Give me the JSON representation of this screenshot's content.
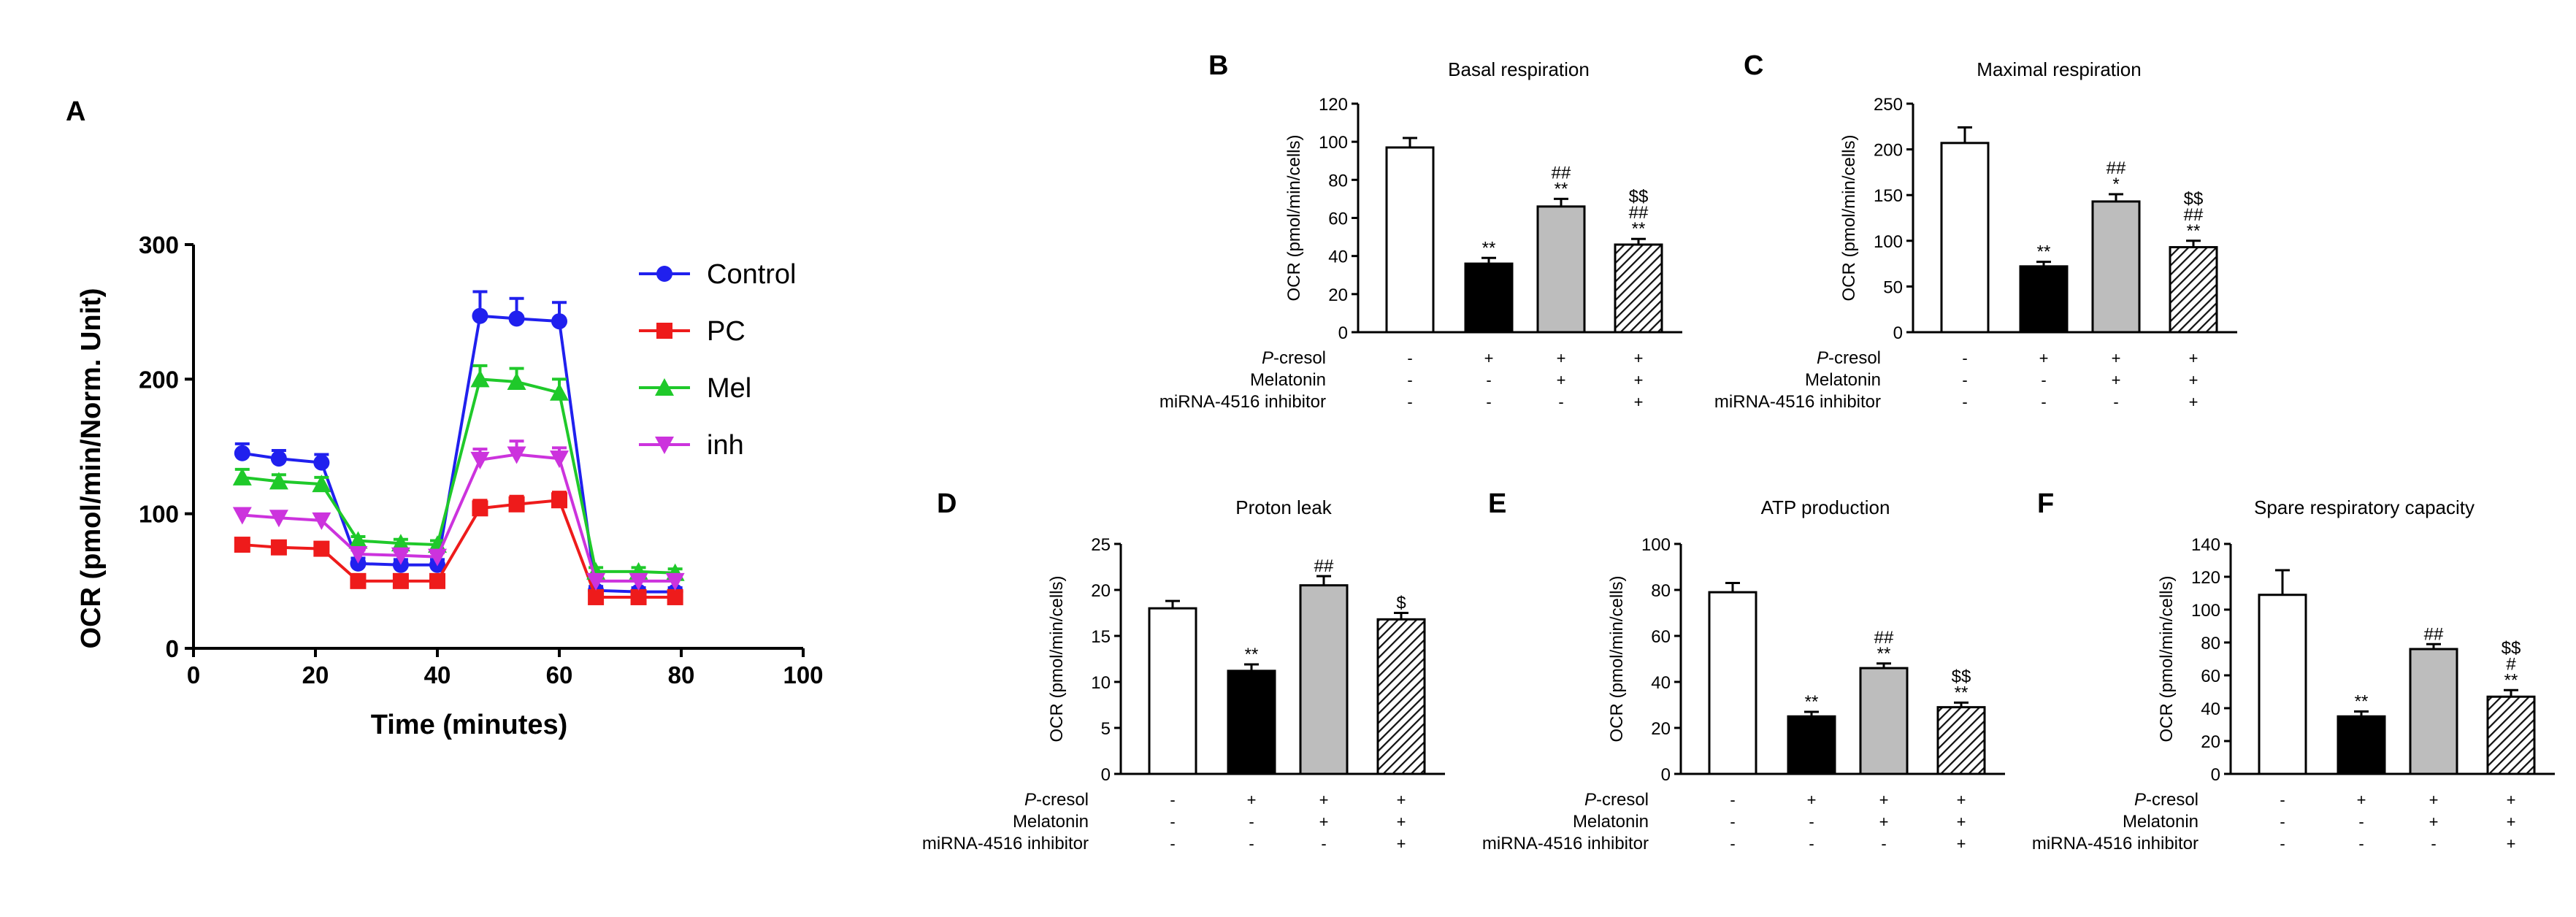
{
  "colors": {
    "control": "#2020ee",
    "pc": "#ee1b1b",
    "mel": "#1fc92a",
    "inh": "#cc33dd"
  },
  "chart_data": [
    {
      "panel": "A",
      "type": "line",
      "title": "",
      "xlabel": "Time (minutes)",
      "ylabel": "OCR (pmol/min/Norm. Unit)",
      "xlim": [
        0,
        100
      ],
      "ylim": [
        0,
        300
      ],
      "xticks": [
        0,
        20,
        40,
        60,
        80,
        100
      ],
      "yticks": [
        0,
        100,
        200,
        300
      ],
      "x": [
        8,
        14,
        21,
        27,
        34,
        40,
        47,
        53,
        60,
        66,
        73,
        79
      ],
      "legend_position": "top-right",
      "series": [
        {
          "name": "Control",
          "color_key": "control",
          "marker": "circle",
          "values": [
            145,
            141,
            138,
            63,
            62,
            62,
            247,
            245,
            243,
            43,
            42,
            42
          ],
          "errors": [
            7,
            6,
            6,
            4,
            4,
            4,
            18,
            15,
            14,
            3,
            3,
            3
          ]
        },
        {
          "name": "PC",
          "color_key": "pc",
          "marker": "square",
          "values": [
            77,
            75,
            74,
            50,
            50,
            50,
            104,
            107,
            110,
            38,
            38,
            38
          ],
          "errors": [
            3,
            3,
            3,
            3,
            3,
            3,
            6,
            6,
            6,
            2,
            2,
            2
          ]
        },
        {
          "name": "Mel",
          "color_key": "mel",
          "marker": "triangle-up",
          "values": [
            127,
            124,
            122,
            80,
            78,
            77,
            200,
            198,
            190,
            57,
            57,
            56
          ],
          "errors": [
            6,
            5,
            5,
            3,
            3,
            3,
            10,
            10,
            10,
            3,
            3,
            3
          ]
        },
        {
          "name": "inh",
          "color_key": "inh",
          "marker": "triangle-down",
          "values": [
            99,
            97,
            95,
            70,
            69,
            68,
            140,
            144,
            141,
            50,
            50,
            50
          ],
          "errors": [
            4,
            4,
            4,
            3,
            3,
            3,
            8,
            10,
            8,
            3,
            3,
            3
          ]
        }
      ]
    },
    {
      "panel": "B",
      "type": "bar",
      "title": "Basal respiration",
      "ylabel": "OCR (pmol/min/cells)",
      "ylim": [
        0,
        120
      ],
      "yticks": [
        0,
        20,
        40,
        60,
        80,
        100,
        120
      ],
      "values": [
        97,
        36,
        66,
        46
      ],
      "errors": [
        5,
        3,
        4,
        3
      ],
      "annotations": [
        [],
        [
          "**"
        ],
        [
          "##",
          "**"
        ],
        [
          "$$",
          "##",
          "**"
        ]
      ]
    },
    {
      "panel": "C",
      "type": "bar",
      "title": "Maximal respiration",
      "ylabel": "OCR (pmol/min/cells)",
      "ylim": [
        0,
        250
      ],
      "yticks": [
        0,
        50,
        100,
        150,
        200,
        250
      ],
      "values": [
        207,
        72,
        143,
        93
      ],
      "errors": [
        17,
        5,
        8,
        7
      ],
      "annotations": [
        [],
        [
          "**"
        ],
        [
          "##",
          "*"
        ],
        [
          "$$",
          "##",
          "**"
        ]
      ]
    },
    {
      "panel": "D",
      "type": "bar",
      "title": "Proton leak",
      "ylabel": "OCR (pmol/min/cells)",
      "ylim": [
        0,
        25
      ],
      "yticks": [
        0,
        5,
        10,
        15,
        20,
        25
      ],
      "values": [
        18,
        11.2,
        20.5,
        16.8
      ],
      "errors": [
        0.8,
        0.7,
        1.0,
        0.7
      ],
      "annotations": [
        [],
        [
          "**"
        ],
        [
          "##"
        ],
        [
          "$"
        ]
      ]
    },
    {
      "panel": "E",
      "type": "bar",
      "title": "ATP production",
      "ylabel": "OCR (pmol/min/cells)",
      "ylim": [
        0,
        100
      ],
      "yticks": [
        0,
        20,
        40,
        60,
        80,
        100
      ],
      "values": [
        79,
        25,
        46,
        29
      ],
      "errors": [
        4,
        2,
        2,
        2
      ],
      "annotations": [
        [],
        [
          "**"
        ],
        [
          "##",
          "**"
        ],
        [
          "$$",
          "**"
        ]
      ]
    },
    {
      "panel": "F",
      "type": "bar",
      "title": "Spare respiratory capacity",
      "ylabel": "OCR (pmol/min/cells)",
      "ylim": [
        0,
        140
      ],
      "yticks": [
        0,
        20,
        40,
        60,
        80,
        100,
        120,
        140
      ],
      "values": [
        109,
        35,
        76,
        47
      ],
      "errors": [
        15,
        3,
        3,
        4
      ],
      "annotations": [
        [],
        [
          "**"
        ],
        [
          "##"
        ],
        [
          "$$",
          "#",
          "**"
        ]
      ]
    }
  ],
  "conditions": {
    "rows": [
      {
        "label": "P-cresol",
        "label_italic_part": "P",
        "label_rest": "-cresol",
        "marks": [
          "-",
          "+",
          "+",
          "+"
        ]
      },
      {
        "label": "Melatonin",
        "marks": [
          "-",
          "-",
          "+",
          "+"
        ]
      },
      {
        "label": "miRNA-4516 inhibitor",
        "marks": [
          "-",
          "-",
          "-",
          "+"
        ]
      }
    ]
  }
}
